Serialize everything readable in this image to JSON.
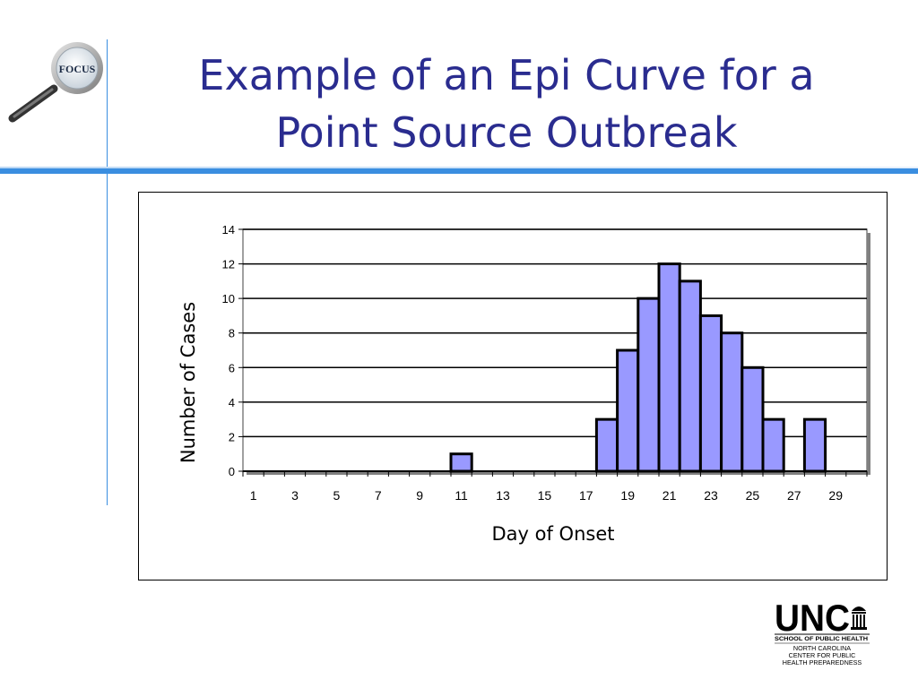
{
  "slide": {
    "title_line1": "Example of an Epi Curve for a",
    "title_line2": "Point Source Outbreak"
  },
  "logos": {
    "focus_label": "FOCUS",
    "unc_wordmark": "UNC",
    "unc_school": "SCHOOL OF PUBLIC HEALTH",
    "unc_center": [
      "NORTH CAROLINA",
      "CENTER FOR PUBLIC",
      "HEALTH PREPAREDNESS"
    ]
  },
  "colors": {
    "title": "#2a2c8f",
    "accent_line": "#3a8ee0",
    "bar_fill": "#9999ff",
    "bar_stroke": "#000000",
    "plot_frame": "#808080"
  },
  "chart_data": {
    "type": "bar",
    "title": "",
    "xlabel": "Day of Onset",
    "ylabel": "Number of Cases",
    "categories": [
      1,
      2,
      3,
      4,
      5,
      6,
      7,
      8,
      9,
      10,
      11,
      12,
      13,
      14,
      15,
      16,
      17,
      18,
      19,
      20,
      21,
      22,
      23,
      24,
      25,
      26,
      27,
      28,
      29,
      30
    ],
    "x_tick_labels": [
      "1",
      "3",
      "5",
      "7",
      "9",
      "11",
      "13",
      "15",
      "17",
      "19",
      "21",
      "23",
      "25",
      "27",
      "29"
    ],
    "values": [
      0,
      0,
      0,
      0,
      0,
      0,
      0,
      0,
      0,
      0,
      1,
      0,
      0,
      0,
      0,
      0,
      0,
      3,
      7,
      10,
      12,
      11,
      9,
      8,
      6,
      3,
      0,
      3,
      0,
      0
    ],
    "ylim": [
      0,
      14
    ],
    "y_ticks": [
      0,
      2,
      4,
      6,
      8,
      10,
      12,
      14
    ],
    "grid": "horizontal",
    "legend": "none"
  }
}
